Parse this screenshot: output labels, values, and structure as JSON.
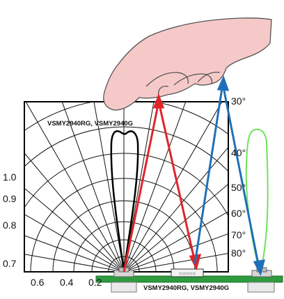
{
  "title_label": "VSMY2940RG, VSMY2940G",
  "pcb_label": "VSMY2940RG, VSMY2940G",
  "angle_labels": [
    "30°",
    "40°",
    "50°",
    "60°",
    "70°",
    "80°"
  ],
  "radial_labels": [
    "1.0",
    "0.9",
    "0.8",
    "0.7"
  ],
  "axis_labels": [
    "0.6",
    "0.4",
    "0.2"
  ],
  "colors": {
    "red_ray": "#e0242a",
    "blue_ray": "#1f6fb8",
    "green_lobe": "#6fe35a",
    "pcb": "#2e9b3f",
    "hand_fill": "#f6c9c9"
  },
  "icons": [
    "hand-icon",
    "emitter-icon",
    "detector-icon"
  ]
}
